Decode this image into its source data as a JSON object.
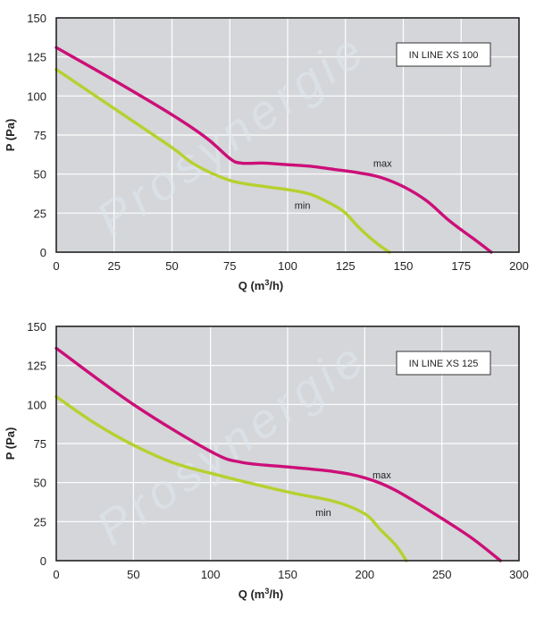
{
  "chart_data": [
    {
      "type": "line",
      "legend": "IN LINE XS 100",
      "xlabel": "Q (m3/h)",
      "ylabel": "P (Pa)",
      "xlim": [
        0,
        200
      ],
      "ylim": [
        0,
        150
      ],
      "xticks": [
        0,
        25,
        50,
        75,
        100,
        125,
        150,
        175,
        200
      ],
      "yticks": [
        0,
        25,
        50,
        75,
        100,
        125,
        150
      ],
      "grid": true,
      "colors": {
        "max": "#cc0f78",
        "min": "#b7d02e"
      },
      "series": [
        {
          "name": "max",
          "label_at": [
            137,
            57
          ],
          "x": [
            0,
            25,
            50,
            65,
            75,
            80,
            90,
            100,
            110,
            120,
            130,
            140,
            150,
            160,
            170,
            180,
            188
          ],
          "y": [
            131,
            110,
            88,
            73,
            60,
            57,
            57,
            56,
            55,
            53,
            51,
            48,
            42,
            33,
            20,
            9,
            0
          ]
        },
        {
          "name": "min",
          "label_at": [
            103,
            30
          ],
          "x": [
            0,
            25,
            50,
            60,
            75,
            90,
            100,
            110,
            120,
            125,
            130,
            135,
            140,
            144
          ],
          "y": [
            117,
            92,
            67,
            56,
            46,
            42,
            40,
            37,
            30,
            25,
            17,
            10,
            4,
            0
          ]
        }
      ]
    },
    {
      "type": "line",
      "legend": "IN LINE XS 125",
      "xlabel": "Q (m3/h)",
      "ylabel": "P (Pa)",
      "xlim": [
        0,
        300
      ],
      "ylim": [
        0,
        150
      ],
      "xticks": [
        0,
        50,
        100,
        150,
        200,
        250,
        300
      ],
      "yticks": [
        0,
        25,
        50,
        75,
        100,
        125,
        150
      ],
      "grid": true,
      "colors": {
        "max": "#cc0f78",
        "min": "#b7d02e"
      },
      "series": [
        {
          "name": "max",
          "label_at": [
            205,
            55
          ],
          "x": [
            0,
            50,
            100,
            120,
            150,
            180,
            200,
            220,
            250,
            270,
            288
          ],
          "y": [
            136,
            100,
            70,
            63,
            60,
            57,
            53,
            45,
            27,
            14,
            0
          ]
        },
        {
          "name": "min",
          "label_at": [
            168,
            31
          ],
          "x": [
            0,
            25,
            50,
            75,
            100,
            150,
            180,
            200,
            210,
            220,
            227
          ],
          "y": [
            105,
            88,
            74,
            63,
            56,
            44,
            38,
            30,
            20,
            10,
            0
          ]
        }
      ]
    }
  ]
}
